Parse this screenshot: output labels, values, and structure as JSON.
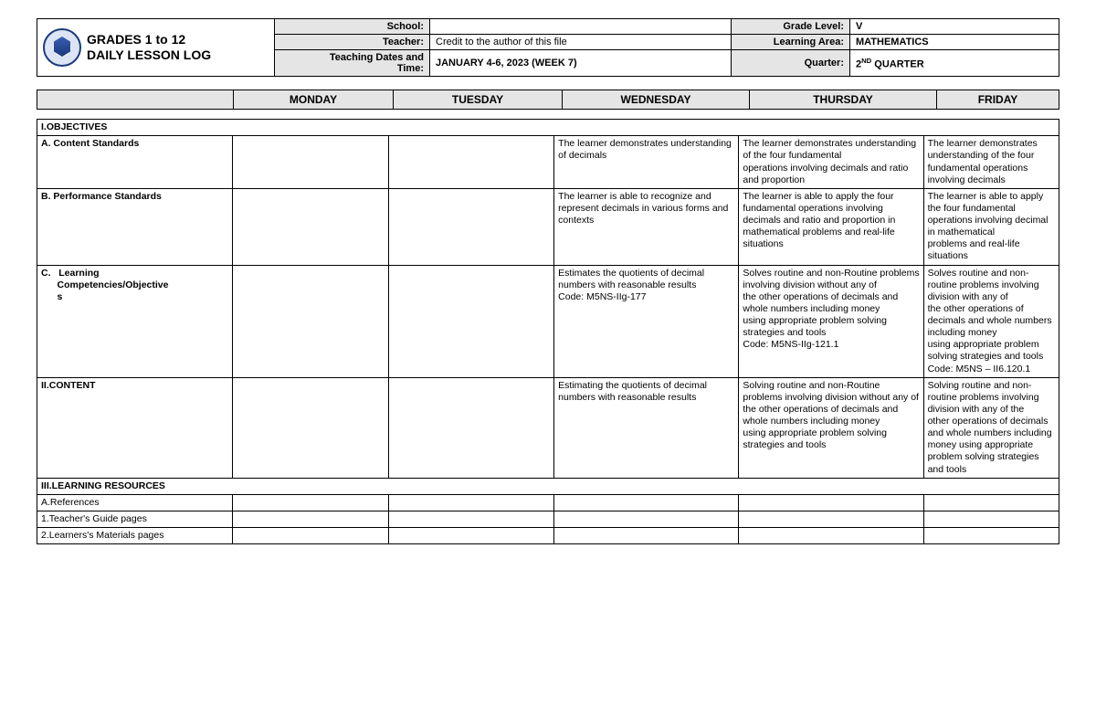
{
  "colors": {
    "header_bg": "#e5e5e5",
    "border": "#000000",
    "text": "#000000",
    "page_bg": "#ffffff"
  },
  "header": {
    "title_line1": "GRADES 1 to 12",
    "title_line2": "DAILY LESSON LOG",
    "labels": {
      "school": "School:",
      "teacher": "Teacher:",
      "dates": "Teaching Dates and Time:",
      "grade": "Grade Level:",
      "area": "Learning Area:",
      "quarter": "Quarter:"
    },
    "values": {
      "school": "",
      "teacher": "Credit to the author of this file",
      "dates": "JANUARY 4-6, 2023 (WEEK 7)",
      "grade": "V",
      "area": "MATHEMATICS",
      "quarter_prefix": "2",
      "quarter_suffix": "ND",
      "quarter_rest": " QUARTER"
    }
  },
  "days": {
    "blank": "",
    "mon": "MONDAY",
    "tue": "TUESDAY",
    "wed": "WEDNESDAY",
    "thu": "THURSDAY",
    "fri": "FRIDAY"
  },
  "sections": {
    "objectives": "I.OBJECTIVES",
    "content": "II.CONTENT",
    "resources": "III.LEARNING RESOURCES"
  },
  "rows": {
    "a_content": {
      "label": "A.   Content Standards",
      "mon": "",
      "tue": "",
      "wed": "The learner demonstrates understanding of decimals",
      "thu": "The learner demonstrates understanding of the four fundamental\noperations involving decimals and ratio and proportion",
      "fri": "The learner demonstrates understanding of the four fundamental operations involving decimals"
    },
    "b_perf": {
      "label": "B.   Performance Standards",
      "mon": "",
      "tue": "",
      "wed": "The learner is able to recognize and represent decimals in various forms and contexts",
      "thu": "The learner is able to apply the four fundamental operations involving\ndecimals and ratio and proportion in mathematical problems and real-life situations",
      "fri": "The learner is able to apply the four fundamental operations involving decimal in mathematical\nproblems and real-life situations"
    },
    "c_comp": {
      "label": "C.   Learning Competencies/Objectives",
      "mon": "",
      "tue": "",
      "wed": "Estimates the quotients of decimal numbers with reasonable results\nCode: M5NS-IIg-177",
      "thu": "Solves routine and non-Routine problems involving division without any of\nthe other operations of decimals and whole numbers including money\nusing appropriate problem solving strategies and tools\nCode: M5NS-IIg-121.1",
      "fri": "Solves routine and non-routine problems involving division with any of\nthe other operations of decimals and whole numbers including money\nusing appropriate problem solving strategies and tools\nCode: M5NS – II6.120.1"
    },
    "ii_content": {
      "mon": "",
      "tue": "",
      "wed": "Estimating  the quotients of decimal numbers with reasonable results",
      "thu": "Solving routine and non-Routine problems involving division without any of\nthe other operations of decimals and whole numbers including money\nusing appropriate problem solving strategies and tools",
      "fri": "Solving routine and non-routine problems involving division with any of the\nother operations of decimals and whole numbers including money using appropriate problem solving strategies and tools"
    },
    "refs": "A.References",
    "tg": "1.Teacher's Guide pages",
    "lm": "2.Learners's Materials pages"
  }
}
